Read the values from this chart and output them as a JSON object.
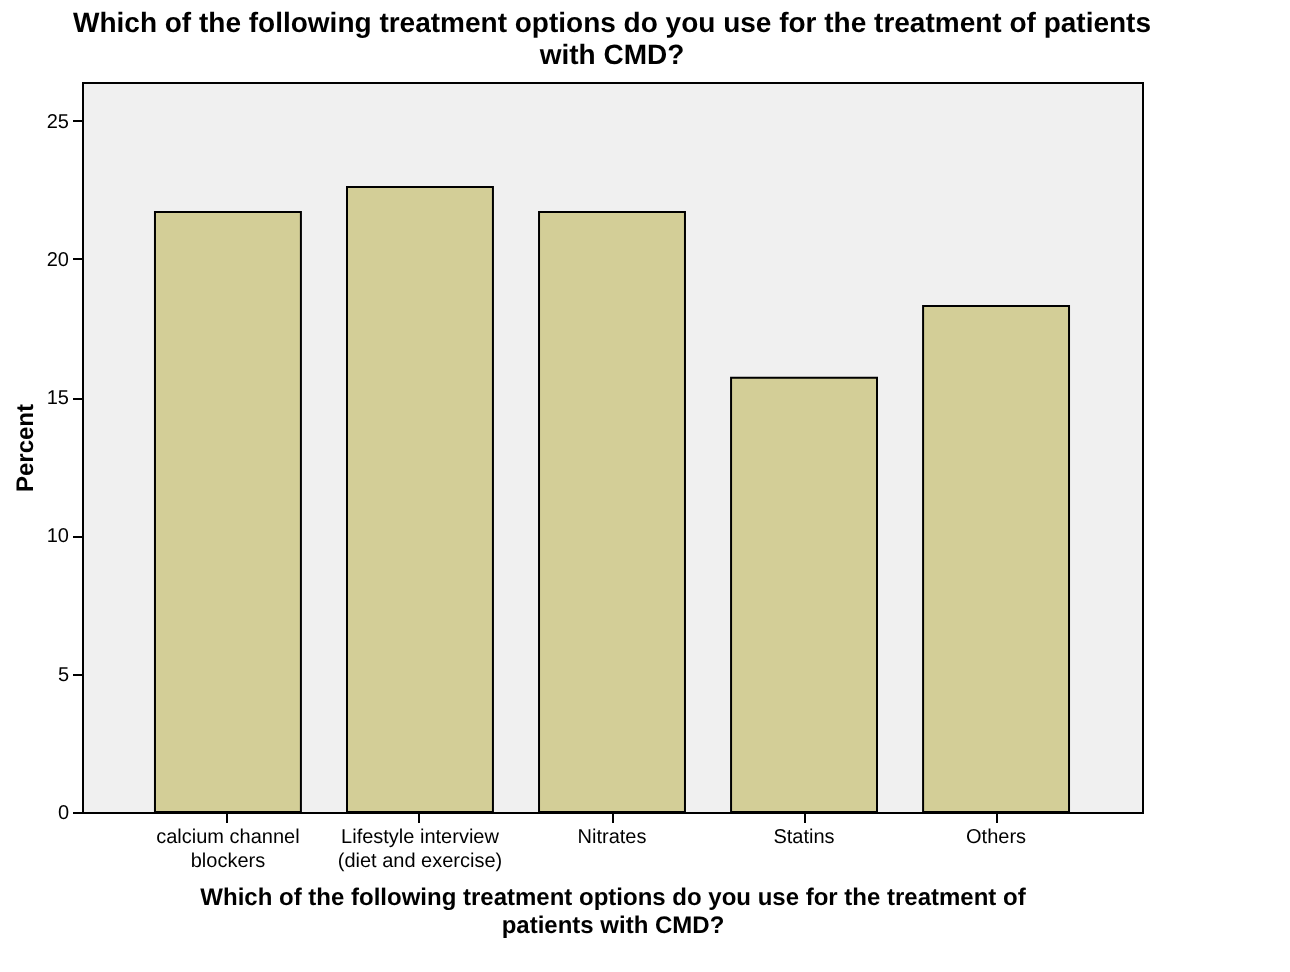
{
  "chart_data": {
    "type": "bar",
    "title": "Which of the following treatment options do you use for the treatment of patients\nwith CMD?",
    "xlabel": "Which of the following treatment options do you use for the treatment of\npatients with CMD?",
    "ylabel": "Percent",
    "categories": [
      "calcium channel\nblockers",
      "Lifestyle interview\n(diet and exercise)",
      "Nitrates",
      "Statins",
      "Others"
    ],
    "values": [
      21.7,
      22.6,
      21.7,
      15.7,
      18.3
    ],
    "color": "#d3ce97",
    "ylim": [
      0,
      26.4
    ],
    "yticks": [
      0,
      5,
      10,
      15,
      20,
      25
    ],
    "grid": false
  }
}
